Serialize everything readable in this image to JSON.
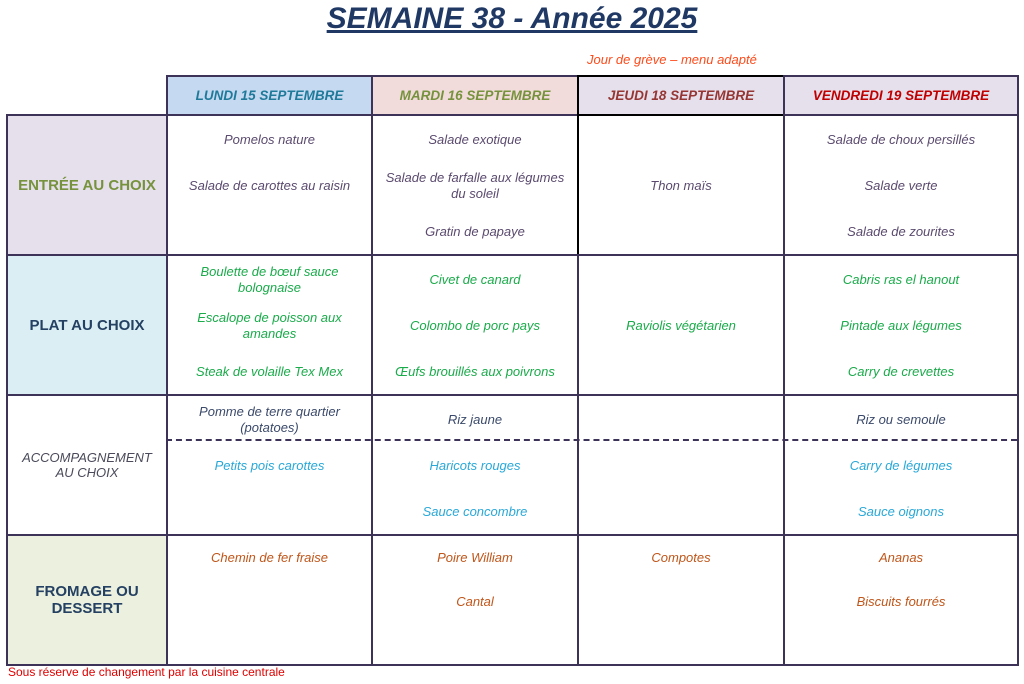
{
  "title": "SEMAINE 38 - Année 2025",
  "note": "Jour de grève – menu adapté",
  "footer": "Sous réserve de changement par la cuisine centrale",
  "days": [
    {
      "label": "LUNDI 15 SEPTEMBRE",
      "color": "#1f7a9a",
      "bg": "#c5d9f1"
    },
    {
      "label": "MARDI 16 SEPTEMBRE",
      "color": "#76923c",
      "bg": "#f2dcdb"
    },
    {
      "label": "JEUDI 18 SEPTEMBRE",
      "color": "#963634",
      "bg": "#e6e0ec"
    },
    {
      "label": "VENDREDI 19 SEPTEMBRE",
      "color": "#c00000",
      "bg": "#e6e0ec"
    }
  ],
  "rows": [
    {
      "label": "ENTRÉE AU CHOIX",
      "color": "#76923c",
      "bg": "#e6e0ec",
      "cells": [
        [
          "Pomelos nature",
          "Salade de carottes au raisin",
          null
        ],
        [
          "Salade exotique",
          "Salade de farfalle aux légumes du soleil",
          "Gratin de papaye"
        ],
        [
          null,
          "Thon maïs",
          null
        ],
        [
          "Salade de choux persillés",
          "Salade verte",
          "Salade de zourites"
        ]
      ]
    },
    {
      "label": "PLAT AU CHOIX",
      "color": "#244062",
      "bg": "#dbeef4",
      "cells": [
        [
          "Boulette de bœuf sauce bolognaise",
          "Escalope de poisson aux amandes",
          "Steak de volaille Tex Mex"
        ],
        [
          "Civet de canard",
          "Colombo de porc pays",
          "Œufs brouillés aux poivrons"
        ],
        [
          null,
          "Raviolis végétarien",
          null
        ],
        [
          "Cabris ras el hanout",
          "Pintade aux légumes",
          "Carry de crevettes"
        ]
      ]
    },
    {
      "label": "ACCOMPAGNEMENT AU CHOIX",
      "color": "#4a4a5a",
      "bg": "#ffffff",
      "cells": [
        [
          "Pomme de terre quartier (potatoes)",
          "Petits pois carottes",
          null
        ],
        [
          "Riz jaune",
          "Haricots rouges",
          "Sauce concombre"
        ],
        [
          null,
          null,
          null
        ],
        [
          "Riz ou semoule",
          "Carry de légumes",
          "Sauce oignons"
        ]
      ]
    },
    {
      "label": "FROMAGE OU DESSERT",
      "color": "#244062",
      "bg": "#ebf1de",
      "cells": [
        [
          "Chemin de fer fraise",
          null,
          null
        ],
        [
          "Poire William",
          "Cantal",
          null
        ],
        [
          "Compotes",
          null,
          null
        ],
        [
          "Ananas",
          "Biscuits fourrés",
          null
        ]
      ]
    }
  ],
  "colors": {
    "entree": "#5a4a6e",
    "plat": "#1aab4a",
    "accomp_top": "#3b4a6b",
    "accomp_bottom": "#29a8d8",
    "dessert": "#c0561a"
  }
}
